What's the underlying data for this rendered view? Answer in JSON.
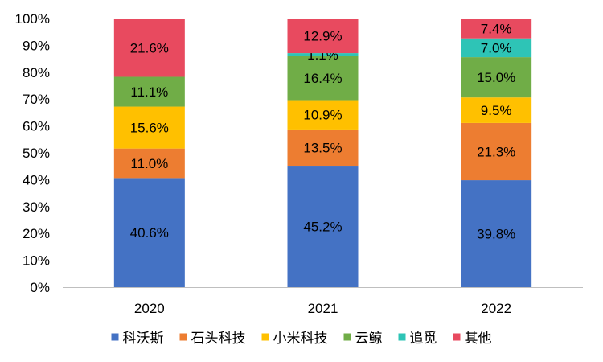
{
  "chart_data": {
    "type": "bar",
    "stacked": true,
    "percent": true,
    "categories": [
      "2020",
      "2021",
      "2022"
    ],
    "ylim": [
      0,
      100
    ],
    "yticks": [
      "0%",
      "10%",
      "20%",
      "30%",
      "40%",
      "50%",
      "60%",
      "70%",
      "80%",
      "90%",
      "100%"
    ],
    "legend_position": "bottom",
    "grid": false,
    "series": [
      {
        "name": "科沃斯",
        "color": "#4472C4",
        "values": [
          40.6,
          45.2,
          39.8
        ],
        "labels": [
          "40.6%",
          "45.2%",
          "39.8%"
        ]
      },
      {
        "name": "石头科技",
        "color": "#ED7D31",
        "values": [
          11.0,
          13.5,
          21.3
        ],
        "labels": [
          "11.0%",
          "13.5%",
          "21.3%"
        ]
      },
      {
        "name": "小米科技",
        "color": "#FFC000",
        "values": [
          15.6,
          10.9,
          9.5
        ],
        "labels": [
          "15.6%",
          "10.9%",
          "9.5%"
        ]
      },
      {
        "name": "云鲸",
        "color": "#70AD47",
        "values": [
          11.1,
          16.4,
          15.0
        ],
        "labels": [
          "11.1%",
          "16.4%",
          "15.0%"
        ]
      },
      {
        "name": "追觅",
        "color": "#2EC4B6",
        "values": [
          0,
          1.1,
          7.0
        ],
        "labels": [
          "",
          "1.1%",
          "7.0%"
        ]
      },
      {
        "name": "其他",
        "color": "#E84A5F",
        "values": [
          21.6,
          12.9,
          7.4
        ],
        "labels": [
          "21.6%",
          "12.9%",
          "7.4%"
        ]
      }
    ]
  }
}
